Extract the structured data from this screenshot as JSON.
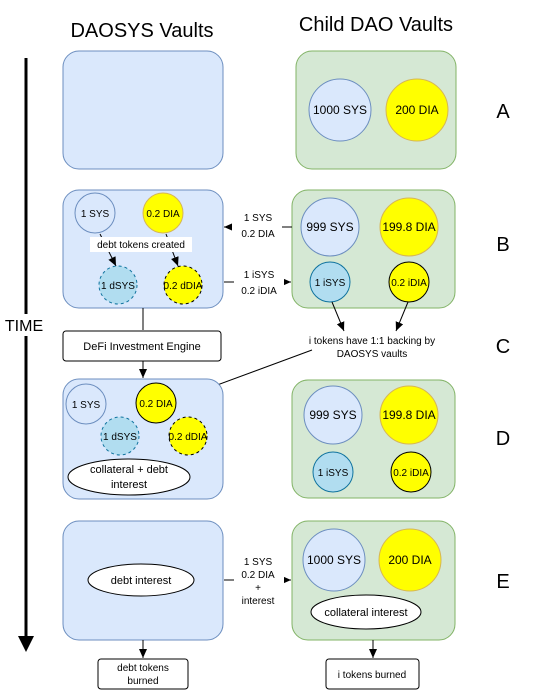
{
  "headers": {
    "left": "DAOSYS Vaults",
    "right": "Child DAO Vaults"
  },
  "time_axis_label": "TIME",
  "stages": [
    "A",
    "B",
    "C",
    "D",
    "E"
  ],
  "stage_a": {
    "child_sys": "1000 SYS",
    "child_dia": "200 DIA"
  },
  "stage_b": {
    "dao_sys": "1 SYS",
    "dao_dia": "0.2 DIA",
    "debt_note": "debt tokens created",
    "dao_dsys": "1 dSYS",
    "dao_ddia": "0.2 dDIA",
    "child_sys": "999 SYS",
    "child_dia": "199.8 DIA",
    "child_isys": "1 iSYS",
    "child_idia": "0.2 iDIA",
    "transfer_in_line1": "1 SYS",
    "transfer_in_line2": "0.2 DIA",
    "transfer_out_line1": "1 iSYS",
    "transfer_out_line2": "0.2 iDIA"
  },
  "stage_c": {
    "engine": "DeFi Investment Engine",
    "backing_line1": "i tokens have 1:1 backing by",
    "backing_line2": "DAOSYS vaults"
  },
  "stage_d": {
    "dao_sys": "1 SYS",
    "dao_dia": "0.2 DIA",
    "dao_dsys": "1 dSYS",
    "dao_ddia": "0.2 dDIA",
    "collateral_line1": "collateral + debt",
    "collateral_line2": "interest",
    "child_sys": "999 SYS",
    "child_dia": "199.8 DIA",
    "child_isys": "1 iSYS",
    "child_idia": "0.2 iDIA"
  },
  "stage_e": {
    "dao_oval": "debt interest",
    "transfer_line1": "1 SYS",
    "transfer_line2": "0.2 DIA",
    "transfer_line3": "+",
    "transfer_line4": "interest",
    "child_sys": "1000 SYS",
    "child_dia": "200 DIA",
    "child_oval": "collateral interest",
    "debt_burned_line1": "debt tokens",
    "debt_burned_line2": "burned",
    "i_burned": "i tokens burned"
  },
  "colors": {
    "dao_vault_fill": "#dae8fc",
    "dao_vault_stroke": "#6c8ebf",
    "child_vault_fill": "#d5e8d4",
    "child_vault_stroke": "#82b366",
    "yellow_token": "#ffff00",
    "blue_token": "#b1ddf0"
  }
}
